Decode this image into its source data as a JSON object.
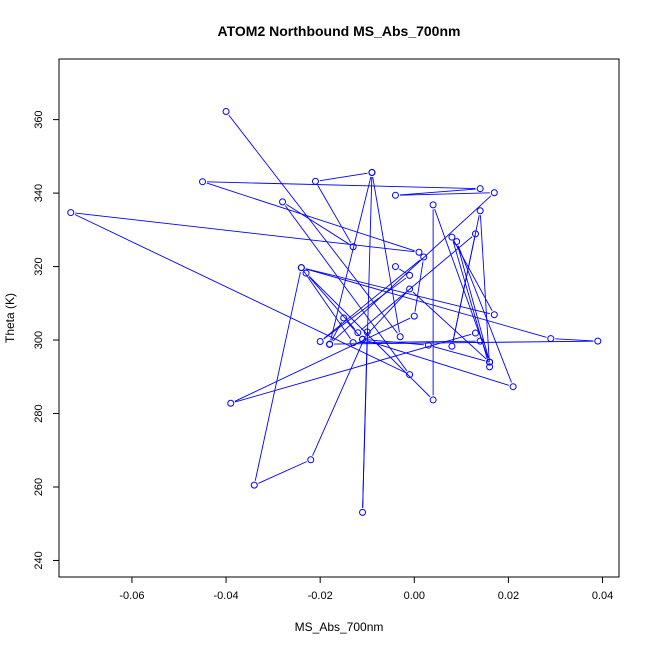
{
  "chart_data": {
    "type": "line",
    "title": "ATOM2 Northbound MS_Abs_700nm",
    "xlabel": "MS_Abs_700nm",
    "ylabel": "Theta (K)",
    "xlim": [
      -0.0755,
      0.0435
    ],
    "ylim": [
      235.5,
      376.5
    ],
    "xticks": [
      -0.06,
      -0.04,
      -0.02,
      0.0,
      0.02,
      0.04
    ],
    "xtick_labels": [
      "-0.06",
      "-0.04",
      "-0.02",
      "0.00",
      "0.02",
      "0.04"
    ],
    "yticks": [
      240,
      260,
      280,
      300,
      320,
      340,
      360
    ],
    "ytick_labels": [
      "240",
      "260",
      "280",
      "300",
      "320",
      "340",
      "360"
    ],
    "grid": false,
    "legend": "none",
    "colors": {
      "series": "#0000ff",
      "axis": "#000000",
      "background": "#ffffff"
    },
    "series": [
      {
        "marker": "open-circle",
        "points": [
          [
            -0.04,
            362.2
          ],
          [
            -0.003,
            300.9
          ],
          [
            -0.009,
            345.6
          ],
          [
            -0.018,
            298.8
          ],
          [
            -0.015,
            306.0
          ],
          [
            -0.011,
            300.2
          ],
          [
            0.003,
            298.6
          ],
          [
            0.016,
            294.0
          ],
          [
            -0.001,
            313.9
          ],
          [
            -0.011,
            300.2
          ],
          [
            0.021,
            287.3
          ],
          [
            0.009,
            326.8
          ],
          [
            0.016,
            294.0
          ],
          [
            0.004,
            336.8
          ],
          [
            0.004,
            283.7
          ],
          [
            -0.023,
            318.2
          ],
          [
            -0.012,
            302.0
          ],
          [
            0.013,
            328.9
          ],
          [
            0.008,
            298.3
          ],
          [
            0.014,
            335.2
          ],
          [
            0.016,
            292.7
          ],
          [
            0.008,
            328.0
          ],
          [
            0.017,
            306.9
          ],
          [
            -0.024,
            319.7
          ],
          [
            0.029,
            300.4
          ],
          [
            0.039,
            299.7
          ],
          [
            -0.018,
            298.9
          ],
          [
            0.017,
            340.1
          ],
          [
            -0.004,
            339.4
          ],
          [
            0.014,
            341.2
          ],
          [
            -0.045,
            343.1
          ],
          [
            0.001,
            323.9
          ],
          [
            -0.073,
            334.7
          ],
          [
            -0.001,
            290.6
          ],
          [
            -0.028,
            337.6
          ],
          [
            -0.013,
            325.4
          ],
          [
            -0.021,
            343.2
          ],
          [
            -0.009,
            345.6
          ],
          [
            -0.011,
            253.1
          ],
          [
            -0.01,
            302.2
          ],
          [
            -0.022,
            267.4
          ],
          [
            -0.034,
            260.5
          ],
          [
            -0.024,
            319.7
          ],
          [
            -0.013,
            299.3
          ],
          [
            0.014,
            299.7
          ],
          [
            0.013,
            301.9
          ],
          [
            -0.039,
            282.8
          ],
          [
            0.0,
            306.5
          ],
          [
            0.002,
            322.6
          ],
          [
            -0.02,
            299.6
          ],
          [
            -0.001,
            317.6
          ],
          [
            -0.004,
            320.0
          ]
        ]
      }
    ]
  }
}
